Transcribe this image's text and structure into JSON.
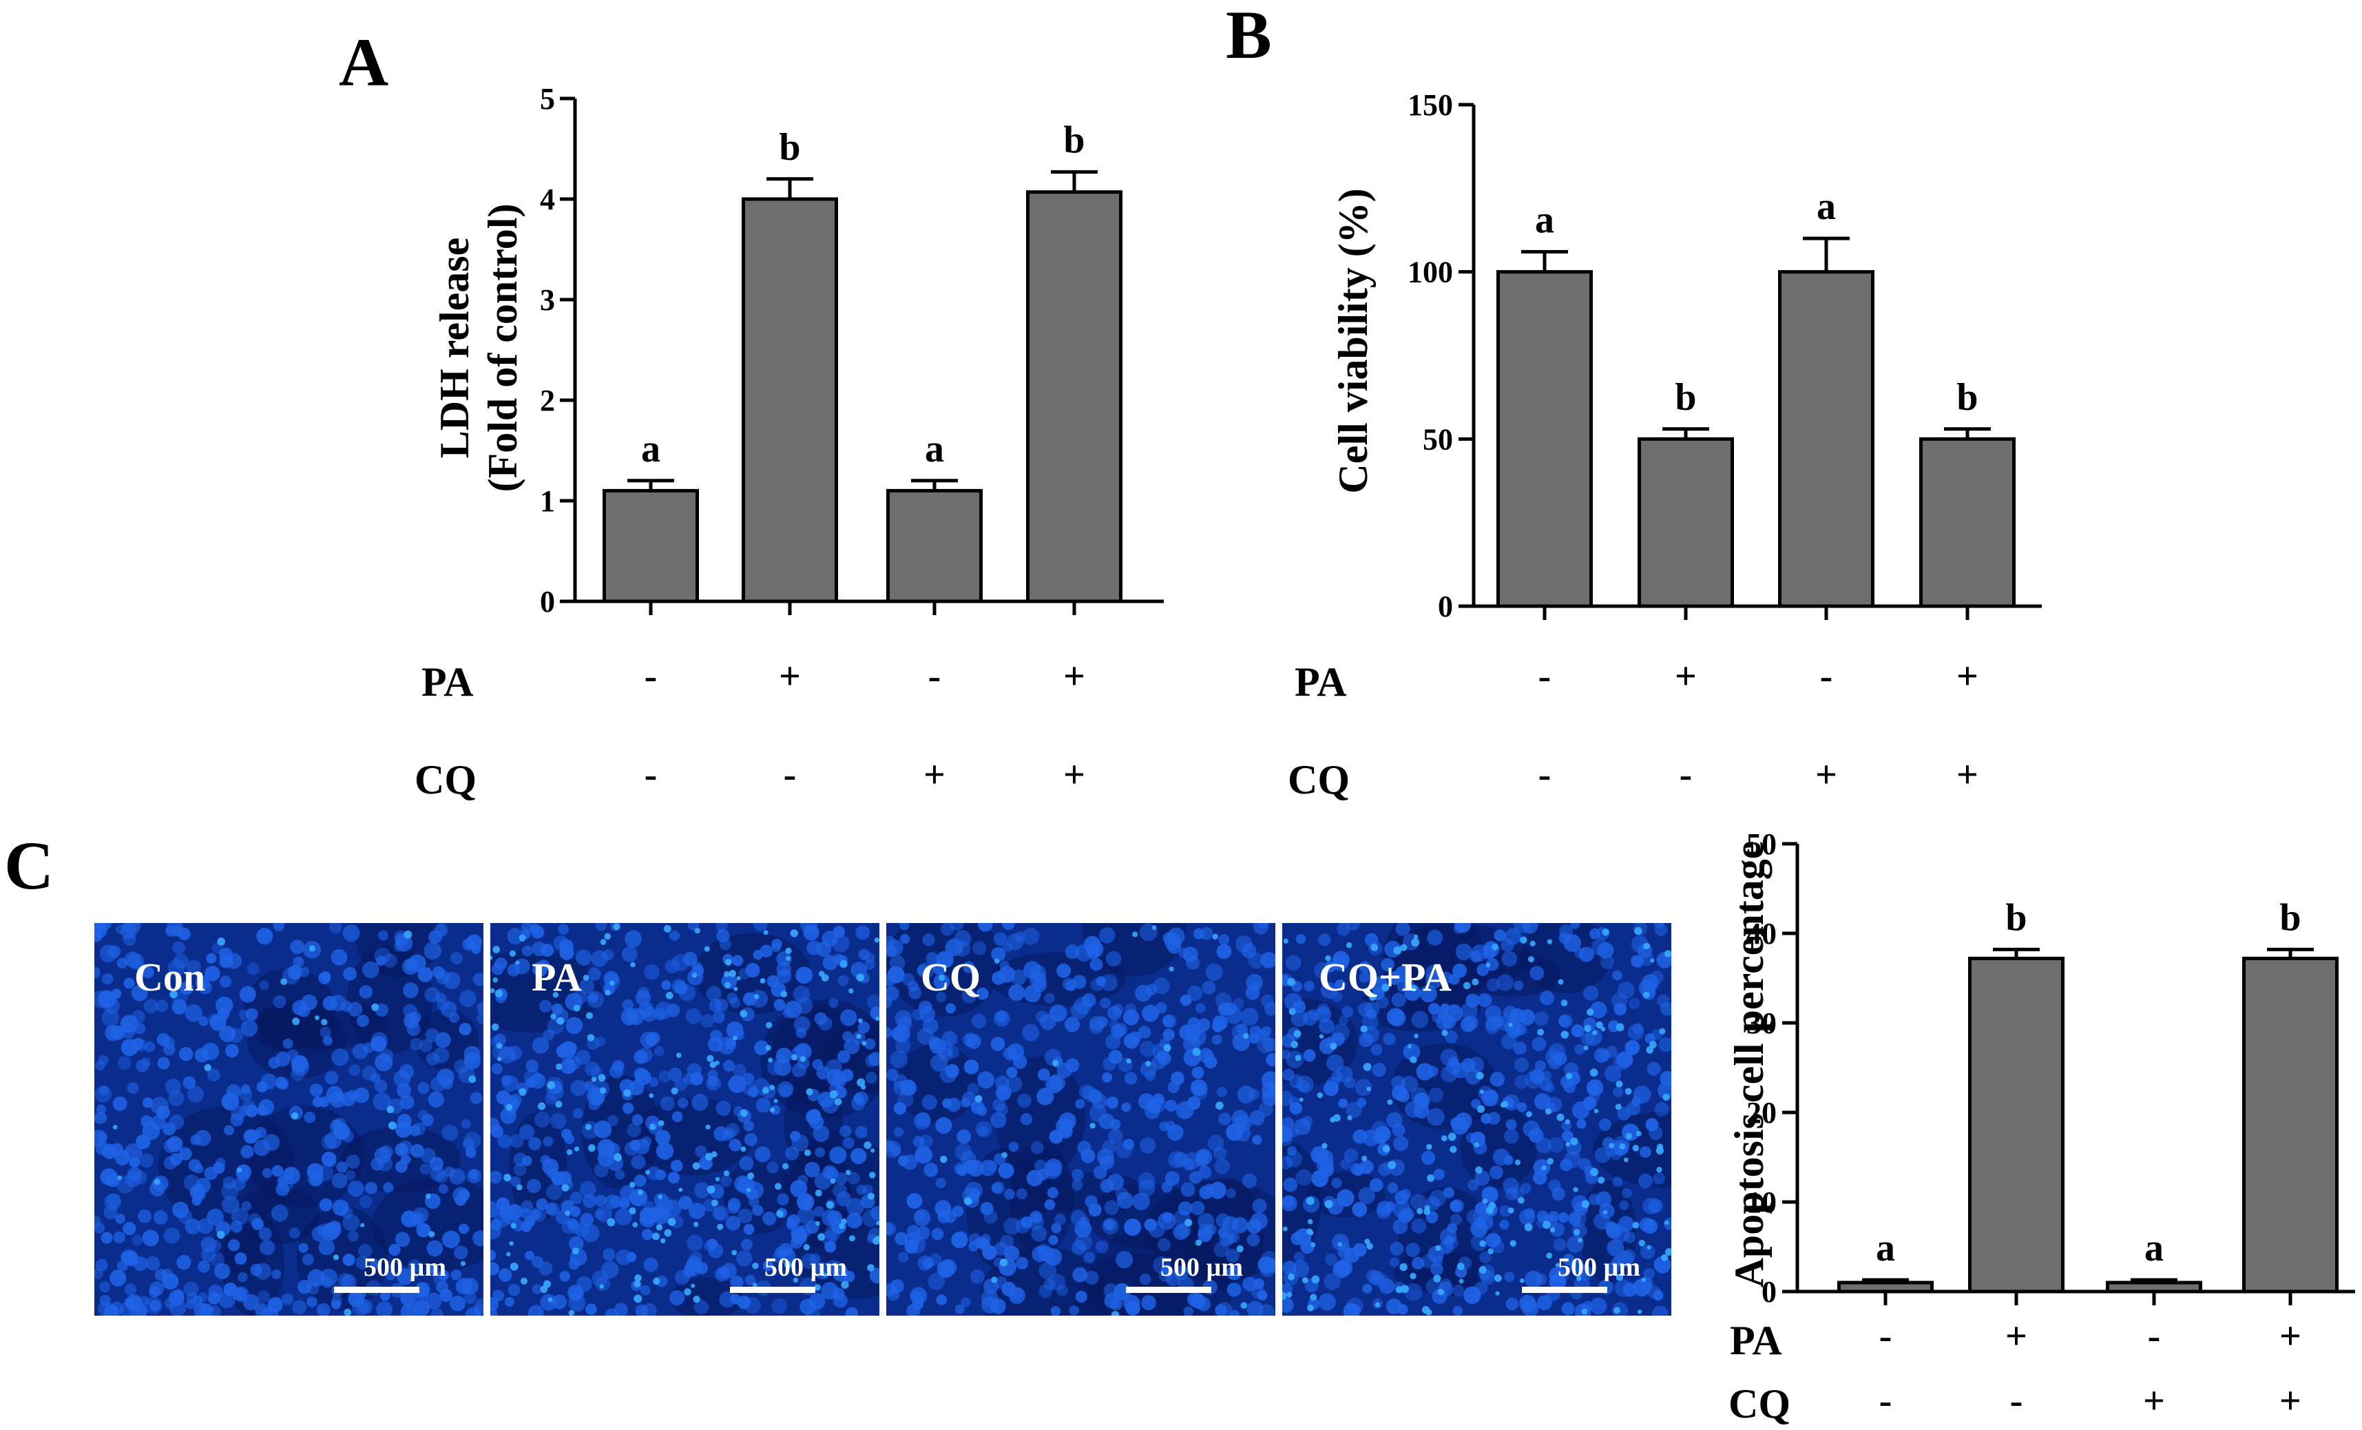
{
  "panels": {
    "A": "A",
    "B": "B",
    "C": "C"
  },
  "treatment_rows": {
    "PA": "PA",
    "CQ": "CQ"
  },
  "chart_data": [
    {
      "id": "A",
      "type": "bar",
      "title": "",
      "ylabel_line1": "LDH release",
      "ylabel_line2": "(Fold of control)",
      "ylim": [
        0,
        5
      ],
      "yticks": [
        0,
        1,
        2,
        3,
        4,
        5
      ],
      "values": [
        1.1,
        4.0,
        1.1,
        4.07
      ],
      "errors": [
        0.1,
        0.2,
        0.1,
        0.2
      ],
      "labels": [
        "a",
        "b",
        "a",
        "b"
      ],
      "PA": [
        "-",
        "+",
        "-",
        "+"
      ],
      "CQ": [
        "-",
        "-",
        "+",
        "+"
      ],
      "bar_color": "#6e6e6e"
    },
    {
      "id": "B",
      "type": "bar",
      "title": "",
      "ylabel": "Cell viability (%)",
      "ylim": [
        0,
        150
      ],
      "yticks": [
        0,
        50,
        100,
        150
      ],
      "values": [
        100,
        50,
        100,
        50
      ],
      "errors": [
        6,
        3,
        10,
        3
      ],
      "labels": [
        "a",
        "b",
        "a",
        "b"
      ],
      "PA": [
        "-",
        "+",
        "-",
        "+"
      ],
      "CQ": [
        "-",
        "-",
        "+",
        "+"
      ],
      "bar_color": "#6e6e6e"
    },
    {
      "id": "C",
      "type": "bar",
      "title": "",
      "ylabel": "Apoptosis cell percentage",
      "ylim": [
        0,
        50
      ],
      "yticks": [
        0,
        10,
        20,
        30,
        40,
        50
      ],
      "values": [
        1,
        37.2,
        1,
        37.2
      ],
      "errors": [
        0.3,
        1.0,
        0.3,
        1.0
      ],
      "labels": [
        "a",
        "b",
        "a",
        "b"
      ],
      "PA": [
        "-",
        "+",
        "-",
        "+"
      ],
      "CQ": [
        "-",
        "-",
        "+",
        "+"
      ],
      "bar_color": "#6e6e6e"
    }
  ],
  "micrographs": [
    {
      "label": "Con",
      "scale": "500 µm",
      "seed": 11
    },
    {
      "label": "PA",
      "scale": "500 µm",
      "seed": 23
    },
    {
      "label": "CQ",
      "scale": "500 µm",
      "seed": 37
    },
    {
      "label": "CQ+PA",
      "scale": "500 µm",
      "seed": 53
    }
  ],
  "colors": {
    "bar": "#6e6e6e",
    "axis": "#000000",
    "micro_bg": "#0a2c8c",
    "cell": "#1f63e6",
    "cell_bright": "#38a8ff"
  }
}
